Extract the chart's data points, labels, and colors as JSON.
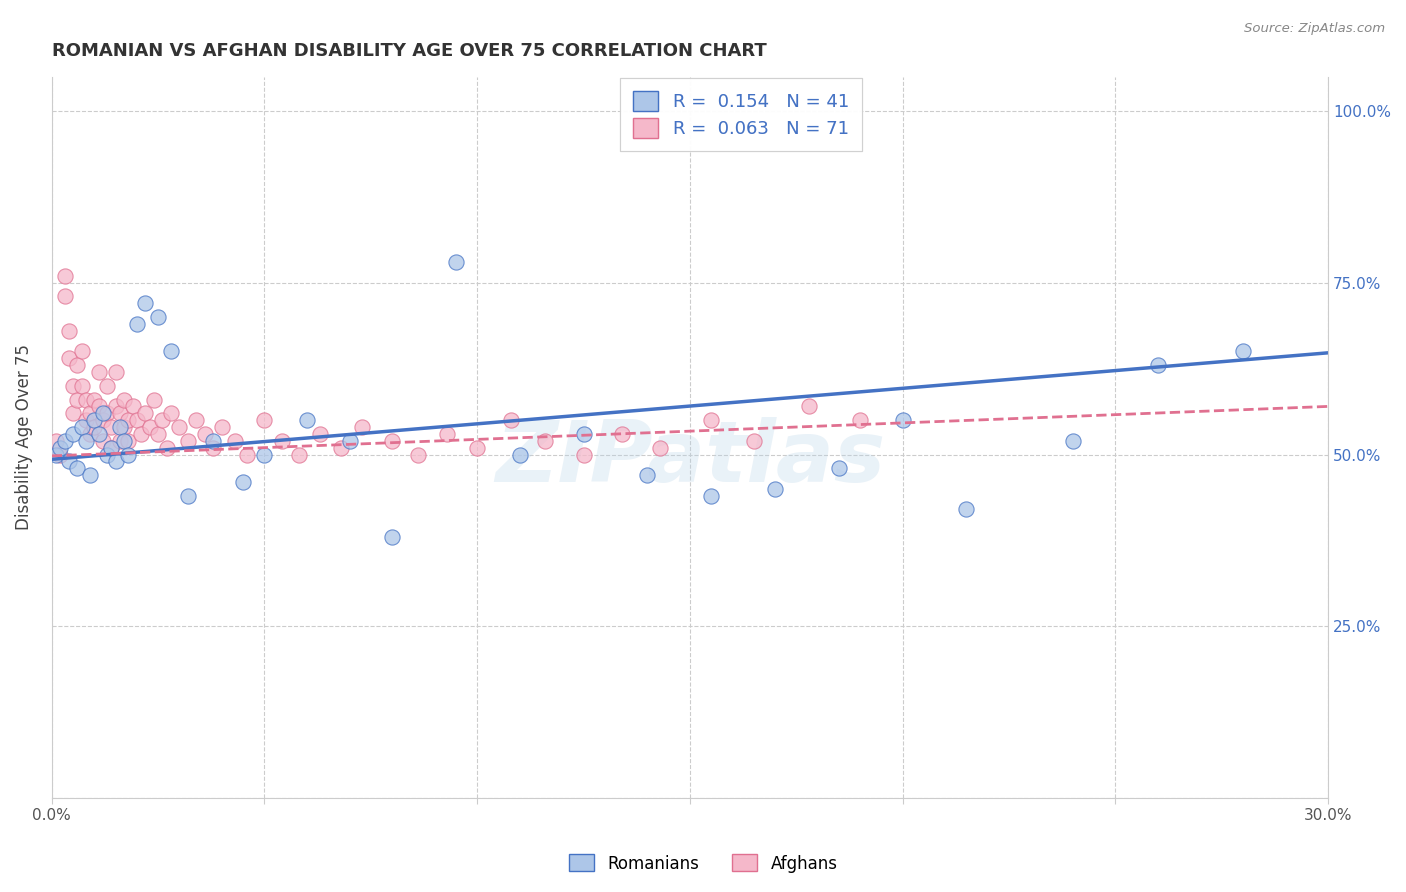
{
  "title": "ROMANIAN VS AFGHAN DISABILITY AGE OVER 75 CORRELATION CHART",
  "source": "Source: ZipAtlas.com",
  "ylabel": "Disability Age Over 75",
  "xlim": [
    0.0,
    0.3
  ],
  "ylim": [
    0.0,
    1.05
  ],
  "ytick_vals": [
    0.0,
    0.25,
    0.5,
    0.75,
    1.0
  ],
  "xtick_vals": [
    0.0,
    0.05,
    0.1,
    0.15,
    0.2,
    0.25,
    0.3
  ],
  "romanians_R": 0.154,
  "romanians_N": 41,
  "afghans_R": 0.063,
  "afghans_N": 71,
  "romanian_color": "#adc6e8",
  "afghan_color": "#f5b8ca",
  "romanian_line_color": "#4472c4",
  "afghan_line_color": "#e07090",
  "watermark": "ZIPatlas",
  "background_color": "#ffffff",
  "romanians_x": [
    0.001,
    0.002,
    0.003,
    0.004,
    0.005,
    0.006,
    0.007,
    0.008,
    0.009,
    0.01,
    0.011,
    0.012,
    0.013,
    0.014,
    0.015,
    0.016,
    0.017,
    0.018,
    0.02,
    0.022,
    0.025,
    0.028,
    0.032,
    0.038,
    0.045,
    0.05,
    0.06,
    0.07,
    0.08,
    0.095,
    0.11,
    0.125,
    0.14,
    0.155,
    0.17,
    0.185,
    0.2,
    0.215,
    0.24,
    0.26,
    0.28
  ],
  "romanians_y": [
    0.5,
    0.51,
    0.52,
    0.49,
    0.53,
    0.48,
    0.54,
    0.52,
    0.47,
    0.55,
    0.53,
    0.56,
    0.5,
    0.51,
    0.49,
    0.54,
    0.52,
    0.5,
    0.69,
    0.72,
    0.7,
    0.65,
    0.44,
    0.52,
    0.46,
    0.5,
    0.55,
    0.52,
    0.38,
    0.78,
    0.5,
    0.53,
    0.47,
    0.44,
    0.45,
    0.48,
    0.55,
    0.42,
    0.52,
    0.63,
    0.65
  ],
  "afghans_x": [
    0.001,
    0.002,
    0.003,
    0.003,
    0.004,
    0.004,
    0.005,
    0.005,
    0.006,
    0.006,
    0.007,
    0.007,
    0.008,
    0.008,
    0.009,
    0.009,
    0.01,
    0.01,
    0.011,
    0.011,
    0.012,
    0.012,
    0.013,
    0.013,
    0.014,
    0.014,
    0.015,
    0.015,
    0.016,
    0.016,
    0.017,
    0.017,
    0.018,
    0.018,
    0.019,
    0.02,
    0.021,
    0.022,
    0.023,
    0.024,
    0.025,
    0.026,
    0.027,
    0.028,
    0.03,
    0.032,
    0.034,
    0.036,
    0.038,
    0.04,
    0.043,
    0.046,
    0.05,
    0.054,
    0.058,
    0.063,
    0.068,
    0.073,
    0.08,
    0.086,
    0.093,
    0.1,
    0.108,
    0.116,
    0.125,
    0.134,
    0.143,
    0.155,
    0.165,
    0.178,
    0.19
  ],
  "afghans_y": [
    0.52,
    0.5,
    0.76,
    0.73,
    0.68,
    0.64,
    0.6,
    0.56,
    0.63,
    0.58,
    0.65,
    0.6,
    0.55,
    0.58,
    0.56,
    0.53,
    0.58,
    0.54,
    0.62,
    0.57,
    0.55,
    0.52,
    0.6,
    0.56,
    0.54,
    0.51,
    0.62,
    0.57,
    0.56,
    0.52,
    0.58,
    0.54,
    0.55,
    0.52,
    0.57,
    0.55,
    0.53,
    0.56,
    0.54,
    0.58,
    0.53,
    0.55,
    0.51,
    0.56,
    0.54,
    0.52,
    0.55,
    0.53,
    0.51,
    0.54,
    0.52,
    0.5,
    0.55,
    0.52,
    0.5,
    0.53,
    0.51,
    0.54,
    0.52,
    0.5,
    0.53,
    0.51,
    0.55,
    0.52,
    0.5,
    0.53,
    0.51,
    0.55,
    0.52,
    0.57,
    0.55
  ],
  "rom_trend_x0": 0.0,
  "rom_trend_y0": 0.493,
  "rom_trend_x1": 0.3,
  "rom_trend_y1": 0.648,
  "afg_trend_x0": 0.0,
  "afg_trend_y0": 0.498,
  "afg_trend_x1": 0.3,
  "afg_trend_y1": 0.57
}
